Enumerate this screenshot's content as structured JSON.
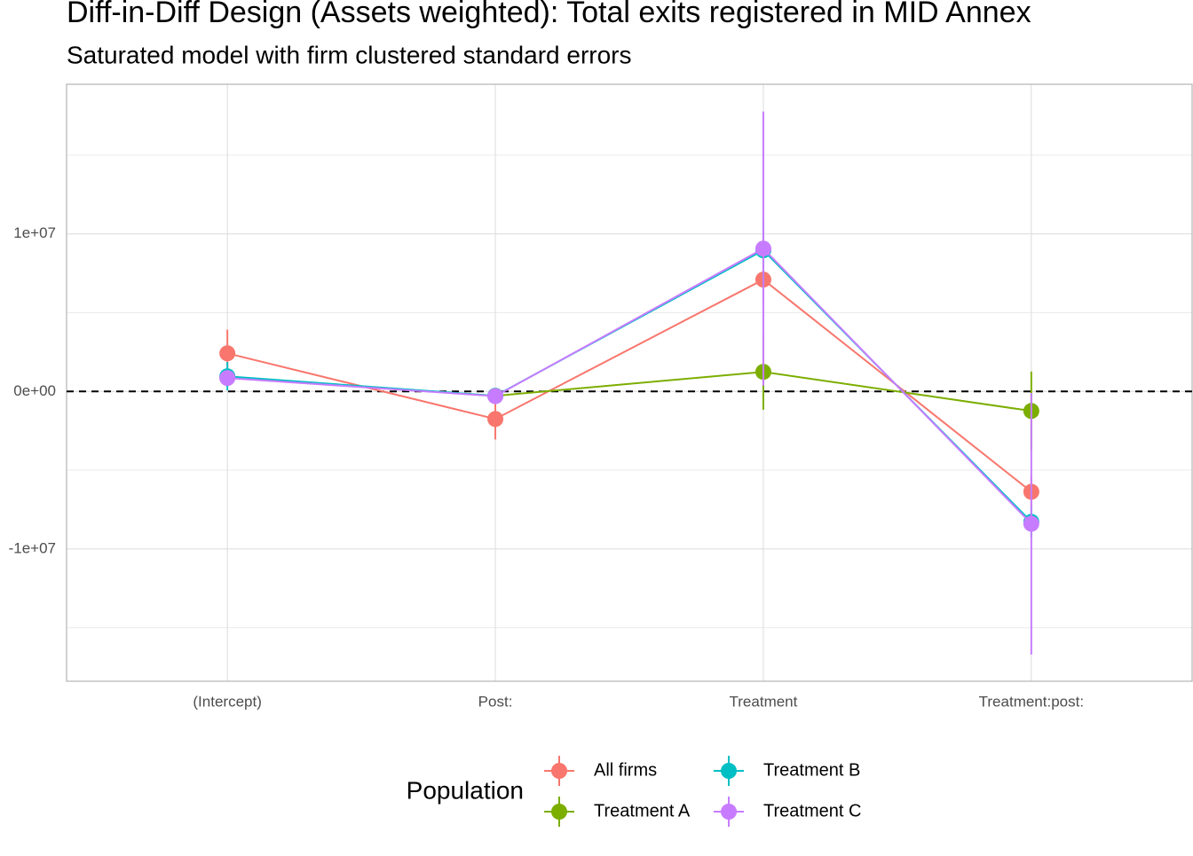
{
  "chart_data": {
    "type": "pointrange",
    "title": "Diff-in-Diff Design (Assets weighted): Total exits registered in MID Annex",
    "subtitle": "Saturated model with firm clustered standard errors",
    "categories": [
      "(Intercept)",
      "Post:",
      "Treatment",
      "Treatment:post:"
    ],
    "series": [
      {
        "name": "All firms",
        "color": "#F8766D",
        "values": [
          2420000,
          -1750000,
          7100000,
          -6370000
        ],
        "errors": [
          1500000,
          1300000,
          1500000,
          1000000
        ]
      },
      {
        "name": "Treatment A",
        "color": "#7CAE00",
        "values": [
          900000,
          -280000,
          1240000,
          -1240000
        ],
        "errors": [
          500000,
          400000,
          2400000,
          2500000
        ]
      },
      {
        "name": "Treatment B",
        "color": "#00BFC4",
        "values": [
          960000,
          -280000,
          8960000,
          -8280000
        ],
        "errors": [
          900000,
          400000,
          2000000,
          1000000
        ]
      },
      {
        "name": "Treatment C",
        "color": "#C77CFF",
        "values": [
          850000,
          -300000,
          9070000,
          -8400000
        ],
        "errors": [
          400000,
          400000,
          8700000,
          8300000
        ]
      }
    ],
    "ylim": [
      -18400000,
      19500000
    ],
    "yticks": [
      {
        "value": -10000000,
        "label": "-1e+07"
      },
      {
        "value": 0,
        "label": "0e+00"
      },
      {
        "value": 10000000,
        "label": "1e+07"
      }
    ],
    "minor_yticks": [
      -15000000,
      -5000000,
      5000000,
      15000000
    ],
    "reference_line": 0,
    "grid": true,
    "legend_title": "Population",
    "legend_position": "bottom"
  }
}
